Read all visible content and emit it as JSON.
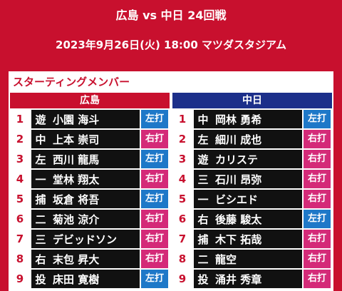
{
  "header": {
    "title": "広島 vs 中日 24回戦",
    "subtitle": "2023年9月26日(火) 18:00 マツダスタジアム"
  },
  "section_title": "スターティングメンバー",
  "teams": [
    {
      "name": "広島",
      "color": "#c8102e",
      "players": [
        {
          "order": 1,
          "position": "遊",
          "name": "小園 海斗",
          "bats": "左打",
          "color": "#1e78c8"
        },
        {
          "order": 2,
          "position": "中",
          "name": "上本 崇司",
          "bats": "右打",
          "color": "#d42a78"
        },
        {
          "order": 3,
          "position": "左",
          "name": "西川 龍馬",
          "bats": "左打",
          "color": "#1e78c8"
        },
        {
          "order": 4,
          "position": "一",
          "name": "堂林 翔太",
          "bats": "右打",
          "color": "#d42a78"
        },
        {
          "order": 5,
          "position": "捕",
          "name": "坂倉 将吾",
          "bats": "左打",
          "color": "#1e78c8"
        },
        {
          "order": 6,
          "position": "二",
          "name": "菊池 涼介",
          "bats": "右打",
          "color": "#d42a78"
        },
        {
          "order": 7,
          "position": "三",
          "name": "デビッドソン",
          "bats": "右打",
          "color": "#d42a78"
        },
        {
          "order": 8,
          "position": "右",
          "name": "末包 昇大",
          "bats": "右打",
          "color": "#d42a78"
        },
        {
          "order": 9,
          "position": "投",
          "name": "床田 寛樹",
          "bats": "左打",
          "color": "#1e78c8"
        }
      ]
    },
    {
      "name": "中日",
      "color": "#1c2f8a",
      "players": [
        {
          "order": 1,
          "position": "中",
          "name": "岡林 勇希",
          "bats": "左打",
          "color": "#1e78c8"
        },
        {
          "order": 2,
          "position": "左",
          "name": "細川 成也",
          "bats": "右打",
          "color": "#d42a78"
        },
        {
          "order": 3,
          "position": "遊",
          "name": "カリステ",
          "bats": "右打",
          "color": "#d42a78"
        },
        {
          "order": 4,
          "position": "三",
          "name": "石川 昂弥",
          "bats": "右打",
          "color": "#d42a78"
        },
        {
          "order": 5,
          "position": "一",
          "name": "ビシエド",
          "bats": "右打",
          "color": "#d42a78"
        },
        {
          "order": 6,
          "position": "右",
          "name": "後藤 駿太",
          "bats": "左打",
          "color": "#1e78c8"
        },
        {
          "order": 7,
          "position": "捕",
          "name": "木下 拓哉",
          "bats": "右打",
          "color": "#d42a78"
        },
        {
          "order": 8,
          "position": "二",
          "name": "龍空",
          "bats": "右打",
          "color": "#d42a78"
        },
        {
          "order": 9,
          "position": "投",
          "name": "涌井 秀章",
          "bats": "右打",
          "color": "#d42a78"
        }
      ]
    }
  ]
}
